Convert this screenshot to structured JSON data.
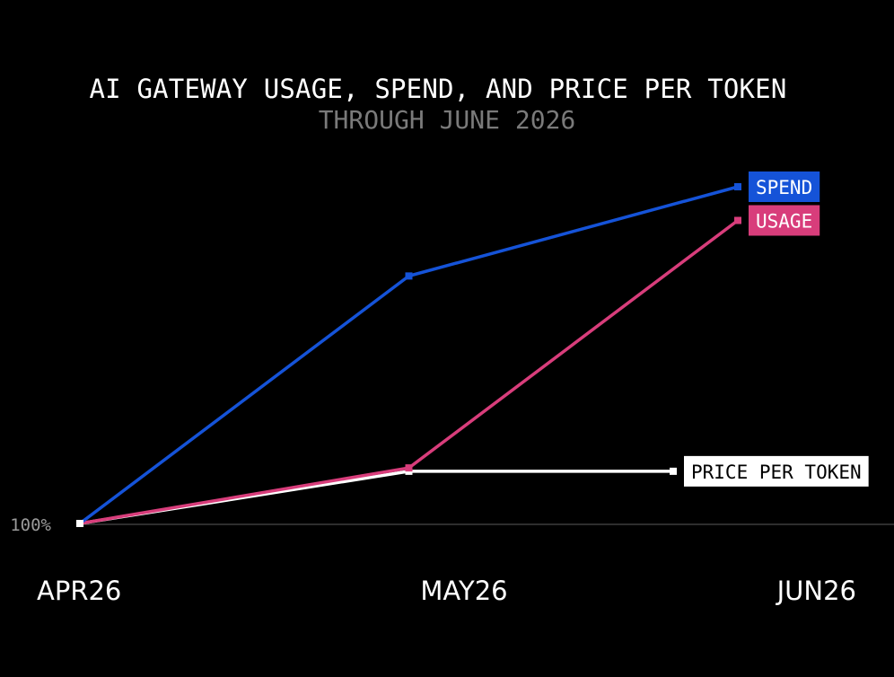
{
  "chart_data": {
    "type": "line",
    "title": "AI GATEWAY USAGE, SPEND, AND PRICE PER TOKEN",
    "subtitle": "THROUGH JUNE 2026",
    "categories": [
      "APR26",
      "MAY26",
      "JUN26"
    ],
    "yticks": [
      {
        "value": 100,
        "label": "100%"
      }
    ],
    "ylim": [
      100,
      300
    ],
    "grid": false,
    "legend": "end-of-line labels",
    "series": [
      {
        "name": "SPEND",
        "color": "#1553d8",
        "label_text_color": "#ffffff",
        "x": [
          "APR26",
          "MAY26",
          "JUN26"
        ],
        "values": [
          100,
          247,
          300
        ]
      },
      {
        "name": "USAGE",
        "color": "#d83d7b",
        "label_text_color": "#ffffff",
        "x": [
          "APR26",
          "MAY26",
          "JUN26"
        ],
        "values": [
          100,
          133,
          280
        ]
      },
      {
        "name": "PRICE PER TOKEN",
        "color": "#ffffff",
        "label_text_color": "#000000",
        "x": [
          "APR26",
          "MAY26",
          "JUN26"
        ],
        "values": [
          100,
          131,
          131
        ]
      }
    ]
  }
}
